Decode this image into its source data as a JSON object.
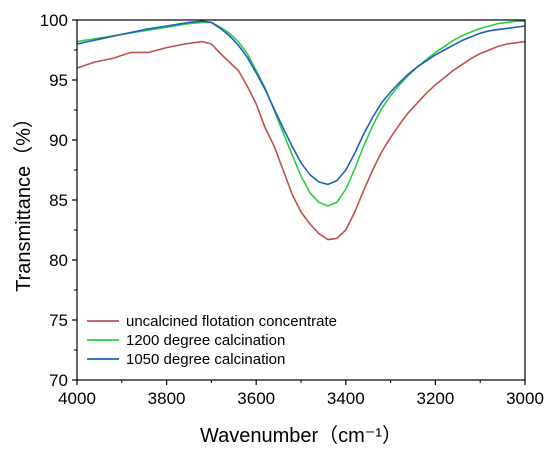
{
  "chart_data": {
    "type": "line",
    "xlabel": "Wavenumber（cm⁻¹）",
    "ylabel": "Transmittance（%）",
    "xlim": [
      4000,
      3000
    ],
    "ylim": [
      70,
      100
    ],
    "x_reversed": true,
    "x_ticks": [
      "4000",
      "3800",
      "3600",
      "3400",
      "3200",
      "3000"
    ],
    "y_ticks": [
      "70",
      "75",
      "80",
      "85",
      "90",
      "95",
      "100"
    ],
    "grid": false,
    "legend_position": "bottom-left",
    "series": [
      {
        "name": "uncalcined flotation concentrate",
        "color": "#c0504d",
        "x": [
          4000,
          3960,
          3920,
          3880,
          3840,
          3800,
          3760,
          3720,
          3700,
          3680,
          3660,
          3640,
          3620,
          3600,
          3580,
          3560,
          3540,
          3520,
          3500,
          3480,
          3460,
          3440,
          3420,
          3400,
          3380,
          3360,
          3340,
          3320,
          3300,
          3280,
          3260,
          3240,
          3220,
          3200,
          3180,
          3160,
          3140,
          3120,
          3100,
          3080,
          3060,
          3040,
          3020,
          3000
        ],
        "y": [
          96.0,
          96.5,
          96.8,
          97.3,
          97.3,
          97.7,
          98.0,
          98.2,
          98.0,
          97.2,
          96.5,
          95.8,
          94.5,
          93.0,
          91.0,
          89.5,
          87.5,
          85.5,
          84.0,
          83.0,
          82.2,
          81.7,
          81.8,
          82.5,
          84.0,
          85.8,
          87.5,
          89.0,
          90.2,
          91.3,
          92.3,
          93.1,
          93.9,
          94.6,
          95.2,
          95.8,
          96.3,
          96.8,
          97.2,
          97.5,
          97.8,
          98.0,
          98.1,
          98.2
        ]
      },
      {
        "name": "1200 degree calcination",
        "color": "#2ecc40",
        "x": [
          4000,
          3950,
          3900,
          3850,
          3800,
          3750,
          3720,
          3700,
          3680,
          3660,
          3640,
          3620,
          3600,
          3580,
          3560,
          3540,
          3520,
          3500,
          3480,
          3460,
          3440,
          3420,
          3400,
          3380,
          3360,
          3340,
          3320,
          3300,
          3280,
          3260,
          3240,
          3220,
          3200,
          3180,
          3160,
          3140,
          3120,
          3100,
          3080,
          3060,
          3040,
          3020,
          3000
        ],
        "y": [
          98.2,
          98.5,
          98.8,
          99.1,
          99.4,
          99.7,
          99.8,
          99.8,
          99.4,
          98.9,
          98.2,
          97.2,
          95.8,
          94.3,
          92.5,
          90.6,
          88.8,
          87.0,
          85.6,
          84.8,
          84.5,
          84.8,
          85.9,
          87.6,
          89.5,
          91.2,
          92.6,
          93.7,
          94.6,
          95.4,
          96.1,
          96.7,
          97.3,
          97.8,
          98.3,
          98.7,
          99.0,
          99.3,
          99.5,
          99.7,
          99.8,
          99.9,
          99.9
        ]
      },
      {
        "name": "1050 degree calcination",
        "color": "#1f5fbf",
        "x": [
          4000,
          3950,
          3900,
          3850,
          3800,
          3750,
          3720,
          3700,
          3680,
          3660,
          3640,
          3620,
          3600,
          3580,
          3560,
          3540,
          3520,
          3500,
          3480,
          3460,
          3440,
          3420,
          3400,
          3380,
          3360,
          3340,
          3320,
          3300,
          3280,
          3260,
          3240,
          3220,
          3200,
          3180,
          3160,
          3140,
          3120,
          3100,
          3080,
          3060,
          3040,
          3020,
          3000
        ],
        "y": [
          98.0,
          98.4,
          98.8,
          99.2,
          99.5,
          99.8,
          99.9,
          99.8,
          99.3,
          98.7,
          97.9,
          96.9,
          95.6,
          94.2,
          92.6,
          91.0,
          89.5,
          88.1,
          87.1,
          86.5,
          86.3,
          86.6,
          87.5,
          88.9,
          90.5,
          91.9,
          93.1,
          94.0,
          94.8,
          95.5,
          96.1,
          96.6,
          97.1,
          97.5,
          97.9,
          98.3,
          98.6,
          98.9,
          99.1,
          99.2,
          99.3,
          99.4,
          99.5
        ]
      }
    ]
  }
}
